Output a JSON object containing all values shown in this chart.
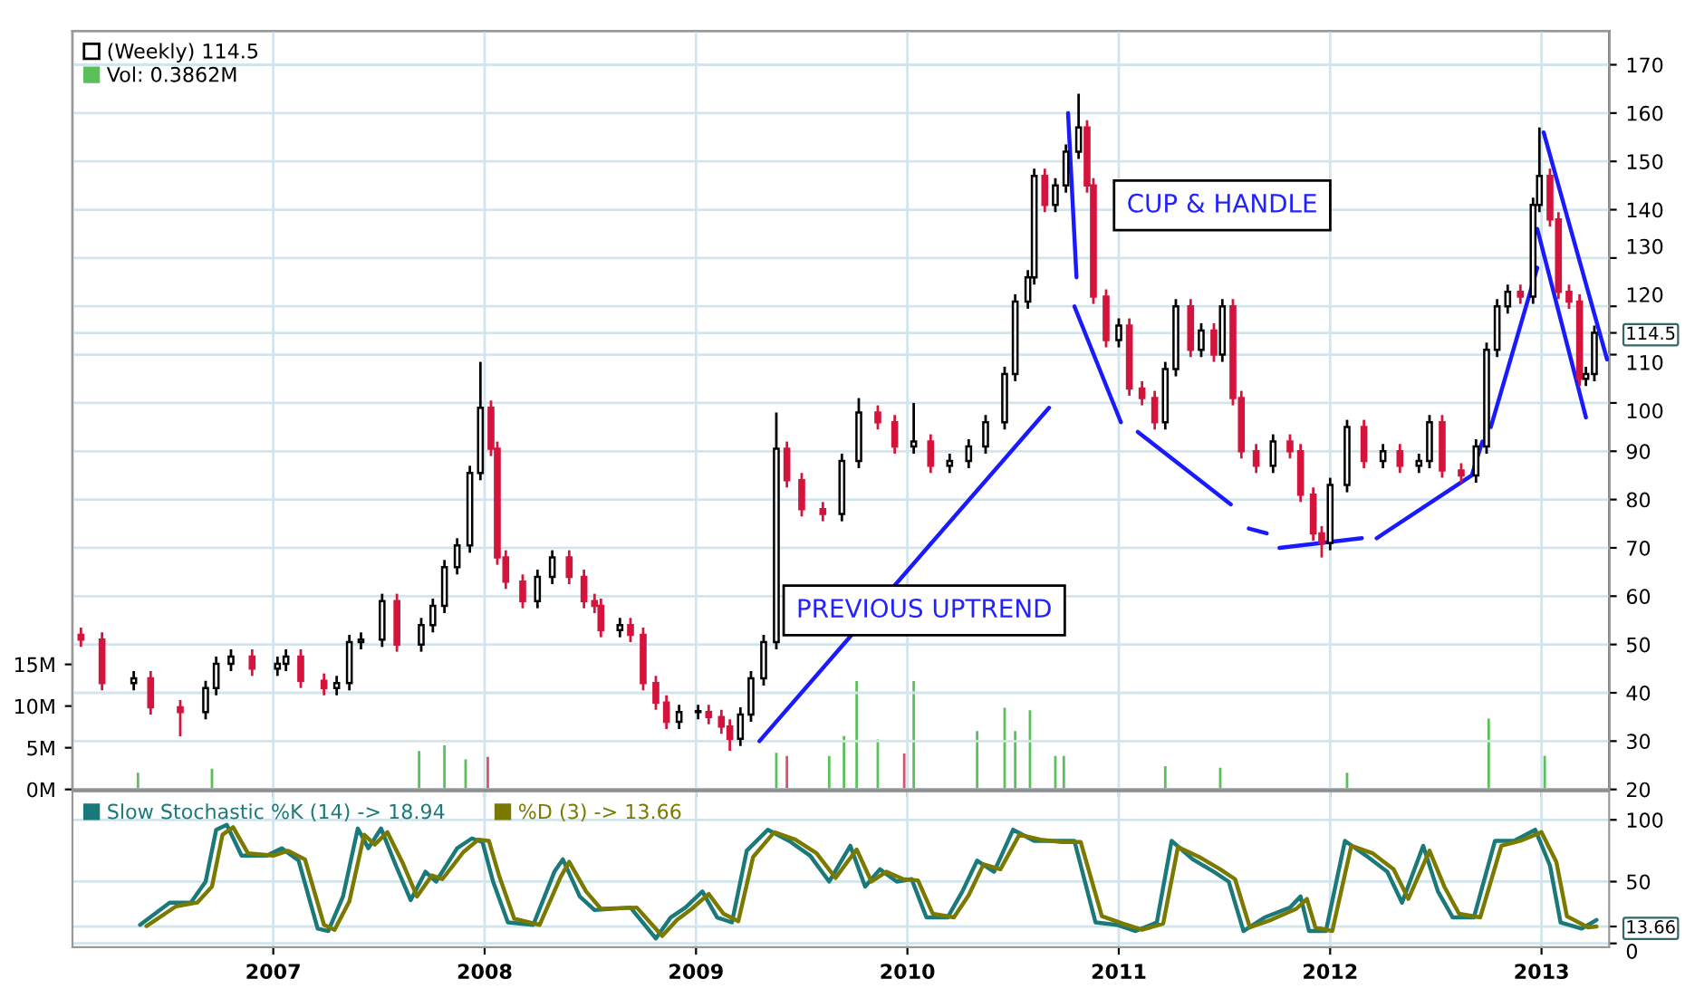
{
  "chart_data": [
    {
      "type": "candlestick",
      "xlim": [
        2006.05,
        2013.32
      ],
      "xticks": [
        2007,
        2008,
        2009,
        2010,
        2011,
        2012,
        2013
      ],
      "ylim": [
        20,
        177
      ],
      "yticks": [
        20,
        30,
        40,
        50,
        60,
        70,
        80,
        90,
        100,
        110,
        120,
        130,
        140,
        150,
        160,
        170,
        {
          "value": 114.5,
          "label": "114.5"
        }
      ],
      "y2lim": [
        0,
        91
      ],
      "y2ticks": [
        {
          "value": 0,
          "label": "0M"
        },
        {
          "value": 5,
          "label": "5M"
        },
        {
          "value": 10,
          "label": "10M"
        },
        {
          "value": 15,
          "label": "15M"
        }
      ],
      "grid": true,
      "legend": "top left",
      "tick_labels": "y",
      "annotations": [
        "CUP & HANDLE",
        "PREVIOUS UPTREND"
      ],
      "series": [
        {
          "type": "candlestick",
          "name": "(Weekly) 114.5",
          "colors": [
            "#d4143c",
            "#d4143c",
            "#000000",
            "#d4143c",
            "#d4143c",
            "#000000",
            "#000000",
            "#000000",
            "#d4143c",
            "#000000",
            "#000000",
            "#d4143c",
            "#d4143c",
            "#000000",
            "#000000",
            "#000000",
            "#000000",
            "#d4143c",
            "#000000",
            "#000000",
            "#000000",
            "#000000",
            "#000000",
            "#000000",
            "#d4143c",
            "#d4143c",
            "#d4143c",
            "#d4143c",
            "#000000",
            "#000000",
            "#d4143c",
            "#d4143c",
            "#d4143c",
            "#d4143c",
            "#000000",
            "#d4143c",
            "#d4143c",
            "#d4143c",
            "#d4143c",
            "#000000",
            "#000000",
            "#d4143c",
            "#d4143c",
            "#d4143c",
            "#000000",
            "#000000",
            "#000000",
            "#000000",
            "#d4143c",
            "#d4143c",
            "#d4143c",
            "#000000",
            "#000000",
            "#d4143c",
            "#d4143c",
            "#000000",
            "#d4143c",
            "#000000",
            "#000000",
            "#000000",
            "#000000",
            "#000000",
            "#000000",
            "#000000",
            "#d4143c",
            "#000000",
            "#000000",
            "#000000",
            "#d4143c",
            "#d4143c",
            "#d4143c",
            "#000000",
            "#d4143c",
            "#d4143c",
            "#d4143c",
            "#000000",
            "#000000",
            "#d4143c",
            "#000000",
            "#d4143c",
            "#000000",
            "#d4143c",
            "#d4143c",
            "#d4143c",
            "#000000",
            "#d4143c",
            "#d4143c",
            "#d4143c",
            "#d4143c",
            "#000000",
            "#000000",
            "#d4143c",
            "#000000",
            "#d4143c",
            "#000000",
            "#000000",
            "#d4143c",
            "#d4143c",
            "#000000",
            "#000000",
            "#000000",
            "#000000",
            "#d4143c",
            "#000000",
            "#000000",
            "#d4143c",
            "#d4143c",
            "#d4143c",
            "#d4143c",
            "#000000",
            "#000000"
          ],
          "x": [
            2006.09,
            2006.19,
            2006.34,
            2006.42,
            2006.56,
            2006.68,
            2006.73,
            2006.8,
            2006.9,
            2007.02,
            2007.06,
            2007.13,
            2007.24,
            2007.3,
            2007.36,
            2007.415,
            2007.515,
            2007.585,
            2007.7,
            2007.755,
            2007.81,
            2007.87,
            2007.93,
            2007.98,
            2008.03,
            2008.06,
            2008.1,
            2008.18,
            2008.25,
            2008.32,
            2008.4,
            2008.47,
            2008.52,
            2008.55,
            2008.64,
            2008.69,
            2008.75,
            2008.81,
            2008.86,
            2008.92,
            2009.01,
            2009.06,
            2009.12,
            2009.16,
            2009.21,
            2009.26,
            2009.32,
            2009.38,
            2009.43,
            2009.5,
            2009.6,
            2009.69,
            2009.77,
            2009.86,
            2009.94,
            2010.03,
            2010.11,
            2010.2,
            2010.29,
            2010.37,
            2010.46,
            2010.51,
            2010.57,
            2010.6,
            2010.65,
            2010.7,
            2010.75,
            2010.81,
            2010.85,
            2010.88,
            2010.94,
            2011.0,
            2011.05,
            2011.11,
            2011.17,
            2011.22,
            2011.27,
            2011.34,
            2011.39,
            2011.45,
            2011.49,
            2011.54,
            2011.58,
            2011.65,
            2011.73,
            2011.81,
            2011.86,
            2011.92,
            2011.96,
            2012.0,
            2012.08,
            2012.16,
            2012.25,
            2012.33,
            2012.42,
            2012.47,
            2012.53,
            2012.62,
            2012.69,
            2012.74,
            2012.79,
            2012.84,
            2012.9,
            2012.96,
            2012.99,
            2013.04,
            2013.08,
            2013.13,
            2013.18,
            2013.21,
            2013.25
          ],
          "ohlc": [
            [
              52,
              53.5,
              49.5,
              51
            ],
            [
              51,
              52.5,
              40.5,
              42
            ],
            [
              42,
              44.5,
              40.5,
              43
            ],
            [
              43,
              44.5,
              35.5,
              37
            ],
            [
              37,
              38.5,
              31,
              36
            ],
            [
              36,
              42.5,
              34.5,
              41
            ],
            [
              41,
              47.5,
              39.5,
              46
            ],
            [
              46,
              49,
              44.5,
              47.5
            ],
            [
              47.5,
              49,
              43.5,
              45
            ],
            [
              45,
              47.5,
              43.5,
              46
            ],
            [
              46,
              49,
              44.5,
              47.5
            ],
            [
              47.5,
              49,
              41,
              42.5
            ],
            [
              42.5,
              44,
              39.5,
              41
            ],
            [
              41,
              43.5,
              39.5,
              42
            ],
            [
              42,
              52,
              40.5,
              50.5
            ],
            [
              50.5,
              52.5,
              49,
              51
            ],
            [
              51,
              60.5,
              49.5,
              59
            ],
            [
              59,
              60.5,
              48.5,
              50
            ],
            [
              50,
              55.5,
              48.5,
              54
            ],
            [
              54,
              59.5,
              52.5,
              58
            ],
            [
              58,
              67.5,
              56.5,
              66
            ],
            [
              66,
              72,
              64.5,
              70.5
            ],
            [
              70.5,
              87,
              69,
              85.5
            ],
            [
              85.5,
              108.5,
              84,
              99
            ],
            [
              99,
              100.5,
              89,
              90.5
            ],
            [
              90.5,
              92,
              66.5,
              68
            ],
            [
              68,
              69.5,
              61.5,
              63
            ],
            [
              63,
              64.5,
              57.5,
              59
            ],
            [
              59,
              65.5,
              57.5,
              64
            ],
            [
              64,
              69.5,
              62.5,
              68
            ],
            [
              68,
              69.5,
              62.5,
              64
            ],
            [
              64,
              65.5,
              57.5,
              59
            ],
            [
              59,
              60.5,
              56.5,
              58
            ],
            [
              58,
              59.5,
              51.5,
              53
            ],
            [
              53,
              55.5,
              51.5,
              54
            ],
            [
              54,
              55.5,
              50.5,
              52
            ],
            [
              52,
              53.5,
              40.5,
              42
            ],
            [
              42,
              43.5,
              36.5,
              38
            ],
            [
              38,
              39.5,
              32.5,
              34
            ],
            [
              34,
              37.5,
              32.5,
              36
            ],
            [
              36,
              37.5,
              34.5,
              36
            ],
            [
              36,
              37.5,
              33.5,
              35
            ],
            [
              35,
              36.5,
              31.5,
              33
            ],
            [
              33,
              34.5,
              28,
              30.5
            ],
            [
              30.5,
              37,
              29,
              35.5
            ],
            [
              35.5,
              44.5,
              34,
              43
            ],
            [
              43,
              52,
              41.5,
              50.5
            ],
            [
              50.5,
              98,
              49,
              90.5
            ],
            [
              90.5,
              92,
              82.5,
              84
            ],
            [
              84,
              85.5,
              76.5,
              78
            ],
            [
              78,
              79.5,
              75.5,
              77
            ],
            [
              77,
              89.5,
              75.5,
              88
            ],
            [
              88,
              101,
              86.5,
              98
            ],
            [
              98,
              99.5,
              94.5,
              96
            ],
            [
              96,
              97.5,
              89.5,
              91
            ],
            [
              91,
              100,
              89.5,
              92
            ],
            [
              92,
              93.5,
              85.5,
              87
            ],
            [
              87,
              89.5,
              85.5,
              88
            ],
            [
              88,
              92.5,
              86.5,
              91
            ],
            [
              91,
              97.5,
              89.5,
              96
            ],
            [
              96,
              107.5,
              94.5,
              106
            ],
            [
              106,
              122.5,
              104.5,
              121
            ],
            [
              121,
              127.5,
              119.5,
              126
            ],
            [
              126,
              148.5,
              124.5,
              147
            ],
            [
              147,
              148.5,
              139.5,
              141
            ],
            [
              141,
              146.5,
              139.5,
              145
            ],
            [
              145,
              153.5,
              143.5,
              152
            ],
            [
              152,
              164,
              150.5,
              157
            ],
            [
              157,
              158.5,
              143.5,
              145
            ],
            [
              145,
              146.5,
              120.5,
              122
            ],
            [
              122,
              123.5,
              111.5,
              113
            ],
            [
              113,
              117.5,
              111.5,
              116
            ],
            [
              116,
              117.5,
              101.5,
              103
            ],
            [
              103,
              104.5,
              99.5,
              101
            ],
            [
              101,
              102.5,
              94.5,
              96
            ],
            [
              96,
              108.5,
              94.5,
              107
            ],
            [
              107,
              121.5,
              105.5,
              120
            ],
            [
              120,
              121.5,
              109.5,
              111
            ],
            [
              111,
              116.5,
              109.5,
              115
            ],
            [
              115,
              116.5,
              108.5,
              110
            ],
            [
              110,
              121.5,
              108.5,
              120
            ],
            [
              120,
              121.5,
              99.5,
              101
            ],
            [
              101,
              102.5,
              88.5,
              90
            ],
            [
              90,
              91.5,
              85.5,
              87
            ],
            [
              87,
              93.5,
              85.5,
              92
            ],
            [
              92,
              93.5,
              88.5,
              90
            ],
            [
              90,
              91.5,
              79.5,
              81
            ],
            [
              81,
              82.5,
              71.5,
              73
            ],
            [
              73,
              74.5,
              68,
              71
            ],
            [
              71,
              84.5,
              69.5,
              83
            ],
            [
              83,
              96.5,
              81.5,
              95
            ],
            [
              95,
              96.5,
              86.5,
              88
            ],
            [
              88,
              91.5,
              86.5,
              90
            ],
            [
              90,
              91.5,
              85.5,
              87
            ],
            [
              87,
              89.5,
              85.5,
              88
            ],
            [
              88,
              97.5,
              86.5,
              96
            ],
            [
              96,
              97.5,
              84.5,
              86
            ],
            [
              86,
              87.5,
              83.5,
              85
            ],
            [
              85,
              92.5,
              83.5,
              91
            ],
            [
              91,
              112.5,
              89.5,
              111
            ],
            [
              111,
              121.5,
              109.5,
              120
            ],
            [
              120,
              124.5,
              118.5,
              123
            ],
            [
              123,
              124.5,
              120.5,
              122
            ],
            [
              122,
              142.5,
              120.5,
              141
            ],
            [
              141,
              157,
              139.5,
              147
            ],
            [
              147,
              148.5,
              136.5,
              138
            ],
            [
              138,
              139.5,
              121.5,
              123
            ],
            [
              123,
              124.5,
              119.5,
              121
            ],
            [
              121,
              122.5,
              103.5,
              105
            ],
            [
              105,
              107.5,
              103.5,
              106
            ],
            [
              106,
              116,
              104.5,
              114.5
            ]
          ]
        },
        {
          "type": "bar",
          "name": "Vol: 0.3862M",
          "axis": "y2",
          "color": "#5ac05a",
          "x": [
            2006.36,
            2006.71,
            2007.69,
            2007.81,
            2007.91,
            2008.015,
            2009.38,
            2009.43,
            2009.63,
            2009.7,
            2009.76,
            2009.86,
            2009.985,
            2010.03,
            2010.33,
            2010.46,
            2010.51,
            2010.58,
            2010.7,
            2010.74,
            2011.22,
            2011.48,
            2012.08,
            2012.75,
            2013.015
          ],
          "values": [
            2,
            2.5,
            4.6,
            5.3,
            3.6,
            3.9,
            4.4,
            4,
            4,
            6.4,
            13,
            6,
            4.3,
            13,
            7,
            9.8,
            7,
            9.5,
            4,
            4,
            2.8,
            2.6,
            2,
            8.5,
            4
          ],
          "colors": [
            "#5ac05a",
            "#5ac05a",
            "#5ac05a",
            "#5ac05a",
            "#5ac05a",
            "#e0506a",
            "#5ac05a",
            "#e0506a",
            "#5ac05a",
            "#5ac05a",
            "#5ac05a",
            "#5ac05a",
            "#e0506a",
            "#5ac05a",
            "#5ac05a",
            "#5ac05a",
            "#5ac05a",
            "#5ac05a",
            "#5ac05a",
            "#5ac05a",
            "#5ac05a",
            "#5ac05a",
            "#5ac05a",
            "#5ac05a",
            "#5ac05a"
          ]
        },
        {
          "type": "line",
          "color": "#1a1aff",
          "x": [
            2009.3,
            2010.67
          ],
          "values": [
            30,
            99
          ]
        },
        {
          "type": "line",
          "color": "#1a1aff",
          "x": [
            2010.76,
            2010.8
          ],
          "values": [
            160,
            126
          ]
        },
        {
          "type": "line",
          "color": "#1a1aff",
          "x": [
            2010.79,
            2011.01
          ],
          "values": [
            120,
            96
          ]
        },
        {
          "type": "line",
          "color": "#1a1aff",
          "x": [
            2011.09,
            2011.53
          ],
          "values": [
            94,
            79
          ]
        },
        {
          "type": "line",
          "color": "#1a1aff",
          "x": [
            2011.615,
            2011.7
          ],
          "values": [
            74,
            73
          ]
        },
        {
          "type": "line",
          "color": "#1a1aff",
          "x": [
            2011.76,
            2012.15
          ],
          "values": [
            70,
            72
          ]
        },
        {
          "type": "line",
          "color": "#1a1aff",
          "x": [
            2012.22,
            2012.67,
            2012.72
          ],
          "values": [
            72,
            85,
            92
          ]
        },
        {
          "type": "line",
          "color": "#1a1aff",
          "x": [
            2012.76,
            2012.98
          ],
          "values": [
            95,
            128
          ]
        },
        {
          "type": "line",
          "color": "#1a1aff",
          "x": [
            2012.98,
            2013.21
          ],
          "values": [
            136,
            97
          ]
        },
        {
          "type": "line",
          "color": "#1a1aff",
          "x": [
            2013.01,
            2013.31
          ],
          "values": [
            156,
            109
          ]
        }
      ]
    },
    {
      "type": "line",
      "xlim": [
        2006.05,
        2013.32
      ],
      "xticks": [
        2007,
        2008,
        2009,
        2010,
        2011,
        2012,
        2013
      ],
      "ylim": [
        -3,
        123
      ],
      "yticks": [
        0,
        50,
        100,
        {
          "value": 13.66,
          "label": "13.66"
        }
      ],
      "grid": true,
      "legend": "top left",
      "series": [
        {
          "name": "Slow Stochastic %K (14) -> 18.94",
          "color": "#1a7a7a",
          "x": [
            2006.37,
            2006.51,
            2006.61,
            2006.68,
            2006.73,
            2006.78,
            2006.85,
            2006.97,
            2007.04,
            2007.12,
            2007.21,
            2007.26,
            2007.33,
            2007.4,
            2007.45,
            2007.51,
            2007.58,
            2007.65,
            2007.72,
            2007.77,
            2007.87,
            2007.94,
            2007.99,
            2008.04,
            2008.11,
            2008.23,
            2008.33,
            2008.37,
            2008.45,
            2008.52,
            2008.69,
            2008.81,
            2008.88,
            2008.95,
            2009.03,
            2009.1,
            2009.17,
            2009.24,
            2009.34,
            2009.44,
            2009.54,
            2009.63,
            2009.73,
            2009.8,
            2009.87,
            2009.95,
            2010.02,
            2010.09,
            2010.19,
            2010.26,
            2010.33,
            2010.41,
            2010.5,
            2010.6,
            2010.7,
            2010.79,
            2010.89,
            2010.99,
            2011.08,
            2011.18,
            2011.25,
            2011.35,
            2011.45,
            2011.52,
            2011.59,
            2011.69,
            2011.81,
            2011.86,
            2011.9,
            2011.98,
            2012.07,
            2012.17,
            2012.27,
            2012.34,
            2012.44,
            2012.51,
            2012.58,
            2012.68,
            2012.78,
            2012.87,
            2012.97,
            2013.04,
            2013.09,
            2013.19,
            2013.26
          ],
          "values": [
            15,
            33,
            33,
            50,
            92,
            96,
            71,
            71,
            77,
            67,
            12,
            10,
            38,
            93,
            77,
            93,
            63,
            35,
            58,
            50,
            77,
            85,
            82,
            50,
            17,
            15,
            58,
            68,
            38,
            27,
            29,
            4,
            21,
            29,
            42,
            21,
            17,
            75,
            92,
            83,
            71,
            50,
            79,
            46,
            60,
            50,
            52,
            21,
            21,
            42,
            67,
            58,
            92,
            83,
            83,
            83,
            17,
            15,
            10,
            17,
            83,
            68,
            58,
            50,
            10,
            21,
            29,
            38,
            10,
            10,
            83,
            71,
            58,
            33,
            79,
            42,
            21,
            21,
            83,
            83,
            92,
            63,
            17,
            12,
            18.94
          ]
        },
        {
          "name": "%D (3) -> 13.66",
          "color": "#7a7a00",
          "x": [
            2006.4,
            2006.54,
            2006.64,
            2006.71,
            2006.76,
            2006.81,
            2006.88,
            2007.0,
            2007.07,
            2007.15,
            2007.24,
            2007.29,
            2007.36,
            2007.43,
            2007.48,
            2007.54,
            2007.61,
            2007.68,
            2007.75,
            2007.8,
            2007.9,
            2007.97,
            2008.02,
            2008.07,
            2008.14,
            2008.26,
            2008.36,
            2008.4,
            2008.48,
            2008.55,
            2008.72,
            2008.84,
            2008.91,
            2008.98,
            2009.06,
            2009.13,
            2009.2,
            2009.27,
            2009.37,
            2009.47,
            2009.57,
            2009.66,
            2009.76,
            2009.83,
            2009.9,
            2009.98,
            2010.05,
            2010.12,
            2010.22,
            2010.29,
            2010.36,
            2010.44,
            2010.53,
            2010.63,
            2010.73,
            2010.82,
            2010.92,
            2011.02,
            2011.11,
            2011.21,
            2011.28,
            2011.38,
            2011.48,
            2011.55,
            2011.62,
            2011.72,
            2011.84,
            2011.89,
            2011.93,
            2012.01,
            2012.1,
            2012.2,
            2012.3,
            2012.37,
            2012.47,
            2012.54,
            2012.61,
            2012.71,
            2012.81,
            2012.9,
            2013.0,
            2013.07,
            2013.12,
            2013.22,
            2013.26
          ],
          "values": [
            14,
            30,
            33,
            46,
            88,
            94,
            73,
            71,
            75,
            68,
            15,
            11,
            34,
            88,
            80,
            90,
            66,
            38,
            55,
            52,
            74,
            84,
            83,
            54,
            20,
            15,
            54,
            66,
            42,
            28,
            29,
            6,
            19,
            28,
            40,
            24,
            18,
            70,
            90,
            84,
            73,
            53,
            76,
            50,
            58,
            52,
            51,
            24,
            21,
            39,
            64,
            60,
            88,
            84,
            82,
            82,
            22,
            16,
            11,
            16,
            78,
            70,
            60,
            52,
            13,
            19,
            28,
            36,
            13,
            10,
            79,
            73,
            60,
            36,
            75,
            46,
            24,
            21,
            79,
            83,
            90,
            66,
            22,
            13,
            13.66
          ]
        }
      ]
    }
  ]
}
